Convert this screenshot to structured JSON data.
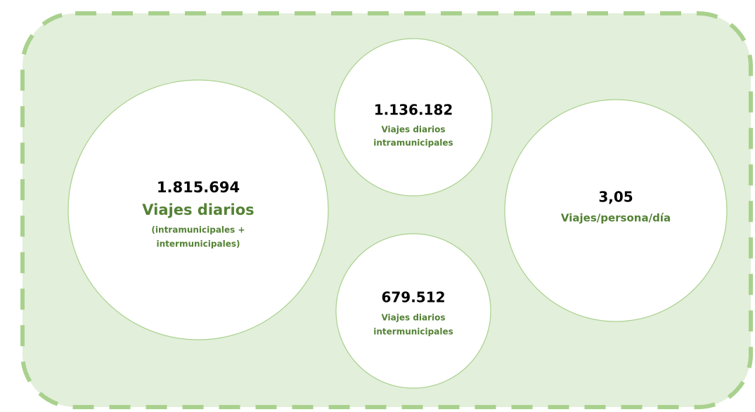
{
  "circles": [
    {
      "value": "1.815.694",
      "label": "Viajes diarios",
      "note": [
        "(intramunicipales +",
        "intermunicipales)"
      ]
    },
    {
      "value": "1.136.182",
      "label": [
        "Viajes diarios",
        "intramunicipales"
      ]
    },
    {
      "value": "679.512",
      "label": [
        "Viajes diarios",
        "intermunicipales"
      ]
    },
    {
      "value": "3,05",
      "label": "Viajes/persona/día"
    }
  ]
}
